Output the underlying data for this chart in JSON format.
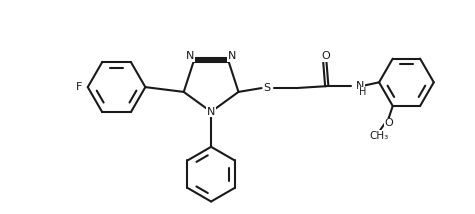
{
  "bg_color": "#ffffff",
  "line_color": "#1a1a1a",
  "line_width": 1.5,
  "font_size": 8.0,
  "figsize": [
    4.75,
    2.14
  ],
  "dpi": 100,
  "xlim": [
    -0.1,
    4.85
  ],
  "ylim": [
    0.05,
    2.09
  ]
}
